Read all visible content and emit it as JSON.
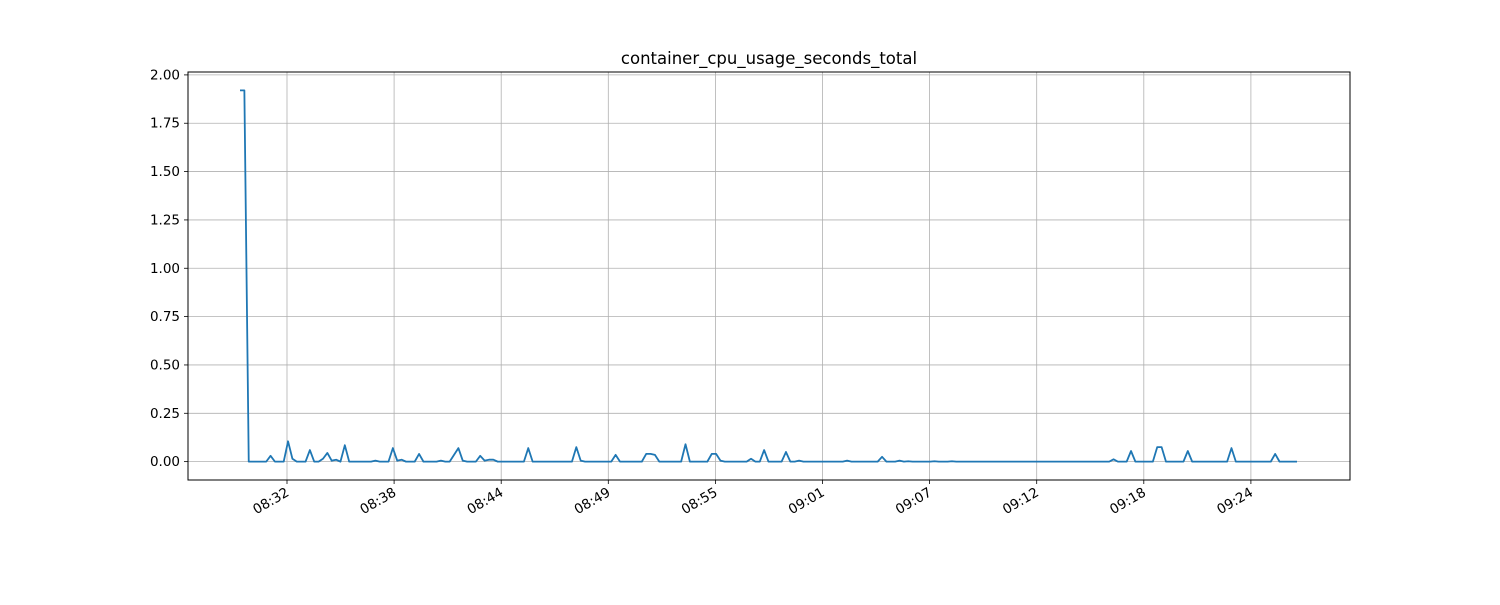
{
  "chart_data": {
    "type": "line",
    "title": "container_cpu_usage_seconds_total",
    "xlabel": "",
    "ylabel": "",
    "grid": true,
    "color": "#1f77b4",
    "x_ticks": [
      "08:32",
      "08:38",
      "08:44",
      "08:49",
      "08:55",
      "09:01",
      "09:07",
      "09:12",
      "09:18",
      "09:24"
    ],
    "y_ticks": [
      "0.00",
      "0.25",
      "0.50",
      "0.75",
      "1.00",
      "1.25",
      "1.50",
      "1.75",
      "2.00"
    ],
    "ylim": [
      -0.095,
      2.015
    ],
    "series": [
      {
        "values": [
          1.92,
          1.92,
          0.0,
          0.0,
          0.0,
          0.0,
          0.0,
          0.03,
          0.0,
          0.0,
          0.0,
          0.105,
          0.015,
          0.0,
          0.0,
          0.0,
          0.06,
          0.0,
          0.0,
          0.015,
          0.045,
          0.005,
          0.01,
          0.0,
          0.085,
          0.0,
          0.0,
          0.0,
          0.0,
          0.0,
          0.0,
          0.005,
          0.0,
          0.0,
          0.0,
          0.07,
          0.005,
          0.01,
          0.0,
          0.0,
          0.0,
          0.04,
          0.0,
          0.0,
          0.0,
          0.0,
          0.005,
          0.0,
          0.0,
          0.035,
          0.07,
          0.005,
          0.0,
          0.0,
          0.0,
          0.03,
          0.005,
          0.01,
          0.01,
          0.0,
          0.0,
          0.0,
          0.0,
          0.0,
          0.0,
          0.0,
          0.07,
          0.0,
          0.0,
          0.0,
          0.0,
          0.0,
          0.0,
          0.0,
          0.0,
          0.0,
          0.0,
          0.075,
          0.005,
          0.0,
          0.0,
          0.0,
          0.0,
          0.0,
          0.0,
          0.0,
          0.035,
          0.0,
          0.0,
          0.0,
          0.0,
          0.0,
          0.0,
          0.04,
          0.04,
          0.035,
          0.0,
          0.0,
          0.0,
          0.0,
          0.0,
          0.0,
          0.09,
          0.0,
          0.0,
          0.0,
          0.0,
          0.0,
          0.04,
          0.04,
          0.005,
          0.0,
          0.0,
          0.0,
          0.0,
          0.0,
          0.0,
          0.015,
          0.0,
          0.0,
          0.06,
          0.0,
          0.0,
          0.0,
          0.0,
          0.05,
          0.0,
          0.0,
          0.005,
          0.0,
          0.0,
          0.0,
          0.0,
          0.0,
          0.0,
          0.0,
          0.0,
          0.0,
          0.0,
          0.005,
          0.0,
          0.0,
          0.0,
          0.0,
          0.0,
          0.0,
          0.0,
          0.025,
          0.0,
          0.0,
          0.0,
          0.005,
          0.0,
          0.002,
          0.0,
          0.0,
          0.0,
          0.0,
          0.0,
          0.002,
          0.0,
          0.0,
          0.0,
          0.002,
          0.0,
          0.0,
          0.0,
          0.0,
          0.0,
          0.0,
          0.0,
          0.0,
          0.0,
          0.0,
          0.0,
          0.0,
          0.0,
          0.0,
          0.0,
          0.0,
          0.0,
          0.0,
          0.0,
          0.0,
          0.0,
          0.0,
          0.0,
          0.0,
          0.0,
          0.0,
          0.0,
          0.0,
          0.0,
          0.0,
          0.0,
          0.0,
          0.0,
          0.0,
          0.0,
          0.0,
          0.012,
          0.0,
          0.0,
          0.0,
          0.055,
          0.0,
          0.0,
          0.0,
          0.0,
          0.0,
          0.075,
          0.075,
          0.0,
          0.0,
          0.0,
          0.0,
          0.0,
          0.055,
          0.0,
          0.0,
          0.0,
          0.0,
          0.0,
          0.0,
          0.0,
          0.0,
          0.0,
          0.07,
          0.0,
          0.0,
          0.0,
          0.0,
          0.0,
          0.0,
          0.0,
          0.0,
          0.0,
          0.04,
          0.0,
          0.0,
          0.0,
          0.0,
          0.0
        ]
      }
    ]
  }
}
